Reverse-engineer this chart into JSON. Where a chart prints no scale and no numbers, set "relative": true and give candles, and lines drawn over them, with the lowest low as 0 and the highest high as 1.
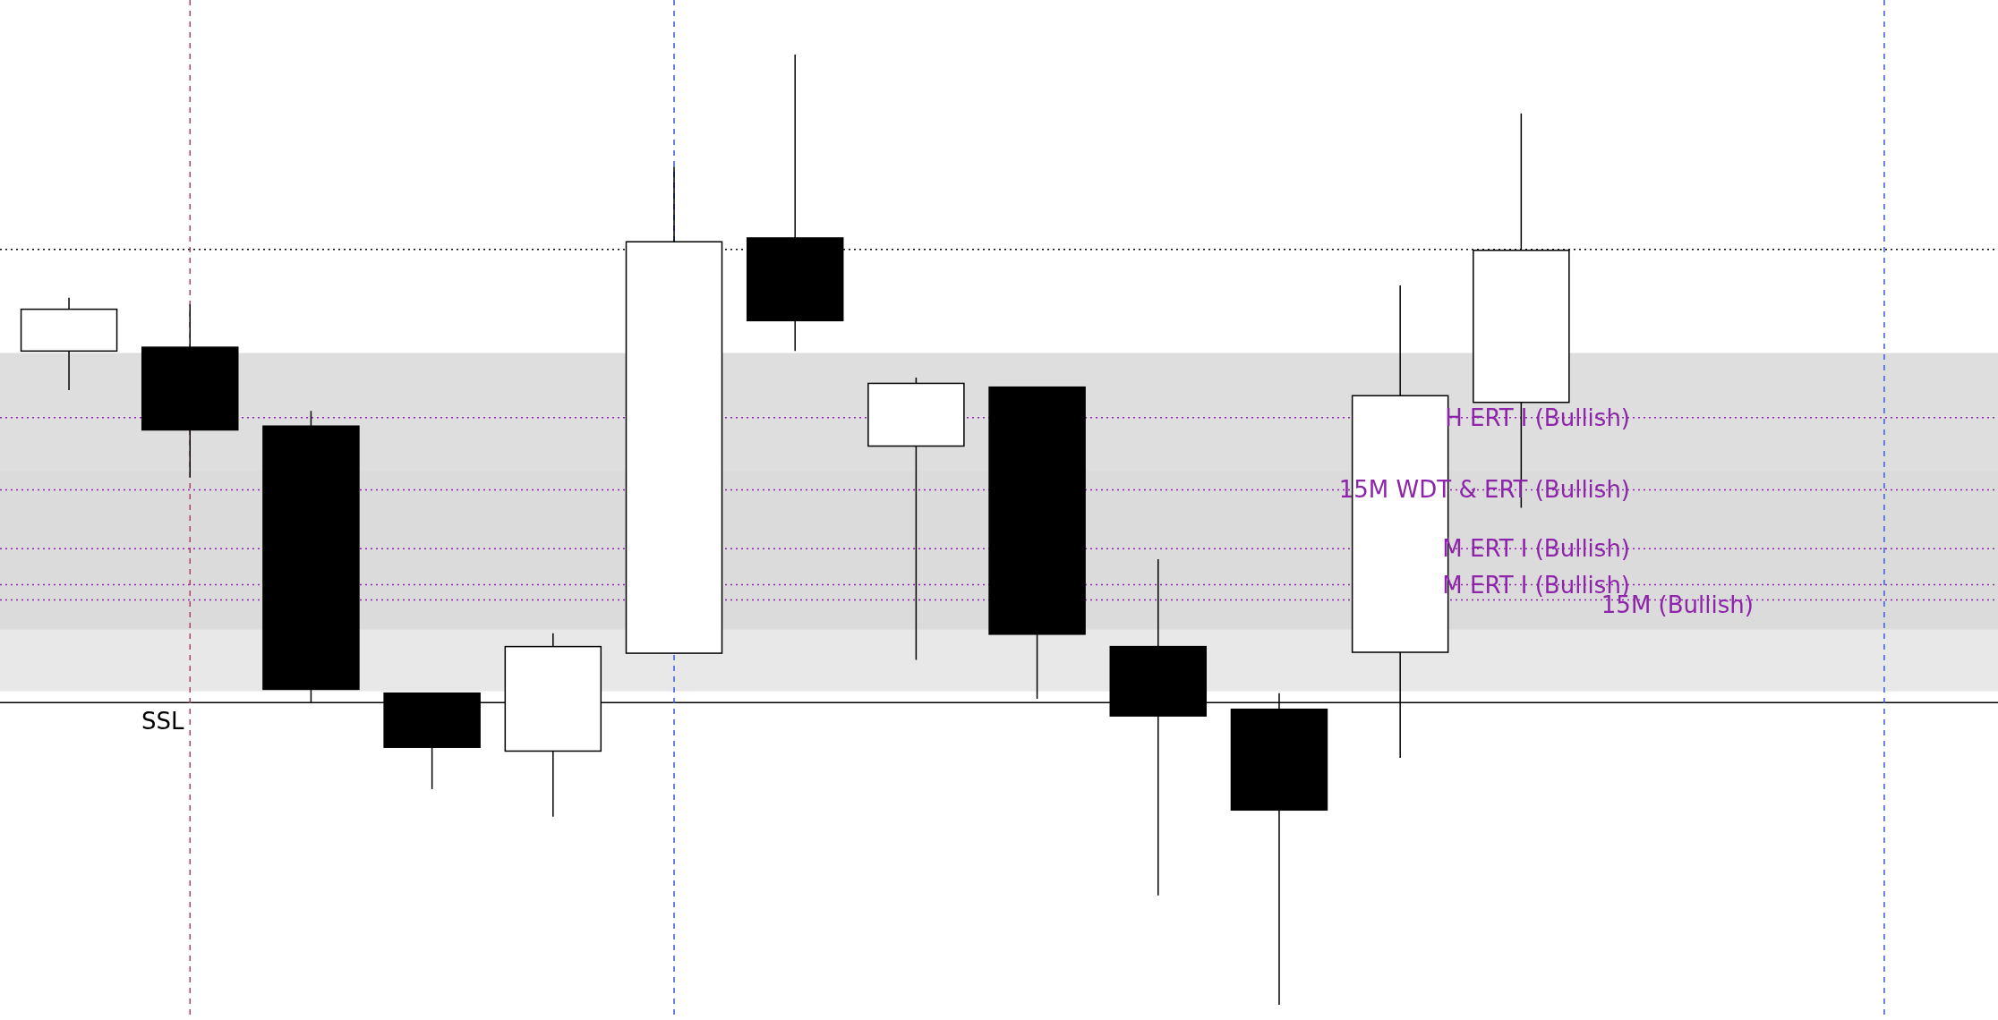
{
  "chart_data": {
    "type": "candlestick",
    "relative": true,
    "categories": [
      null,
      null,
      null,
      null,
      null,
      null,
      null,
      null,
      null,
      null,
      null,
      null,
      null
    ],
    "ohlc": [
      [
        0.688,
        0.744,
        0.647,
        0.732
      ],
      [
        0.692,
        0.737,
        0.555,
        0.605
      ],
      [
        0.609,
        0.625,
        0.318,
        0.332
      ],
      [
        0.328,
        0.328,
        0.227,
        0.271
      ],
      [
        0.267,
        0.391,
        0.198,
        0.377
      ],
      [
        0.37,
        0.882,
        0.37,
        0.803
      ],
      [
        0.807,
        1,
        0.688,
        0.72
      ],
      [
        0.588,
        0.66,
        0.363,
        0.654
      ],
      [
        0.65,
        0.65,
        0.322,
        0.39
      ],
      [
        0.377,
        0.469,
        0.115,
        0.304
      ],
      [
        0.311,
        0.328,
        0,
        0.205
      ],
      [
        0.371,
        0.757,
        0.26,
        0.641
      ],
      [
        0.634,
        0.938,
        0.523,
        0.794
      ]
    ],
    "bands": [
      {
        "axis": "y",
        "from": 0.395,
        "to": 0.686,
        "color": "#c8c8c8"
      },
      {
        "axis": "y",
        "from": 0.33,
        "to": 0.562,
        "color": "#d8d8d8"
      }
    ],
    "ref_lines": [
      {
        "axis": "y",
        "value": 0.795,
        "color": "#000000",
        "line_style": "dotted"
      },
      {
        "axis": "y",
        "value": 0.618,
        "label": "H ERT I (Bullish)",
        "color": "#8e24aa",
        "line_style": "dotted"
      },
      {
        "axis": "y",
        "value": 0.542,
        "label": "15M WDT & ERT (Bullish)",
        "color": "#8e24aa",
        "line_style": "dotted"
      },
      {
        "axis": "y",
        "value": 0.48,
        "label": "M ERT I (Bullish)",
        "color": "#8e24aa",
        "line_style": "dotted"
      },
      {
        "axis": "y",
        "value": 0.442,
        "label": "M ERT I (Bullish)",
        "color": "#8e24aa",
        "line_style": "dotted"
      },
      {
        "axis": "y",
        "value": 0.426,
        "label": "15M (Bullish)",
        "color": "#8e24aa",
        "line_style": "dotted"
      },
      {
        "axis": "y",
        "value": 0.318,
        "label": "SSL",
        "color": "#000000",
        "line_style": "solid"
      }
    ]
  }
}
